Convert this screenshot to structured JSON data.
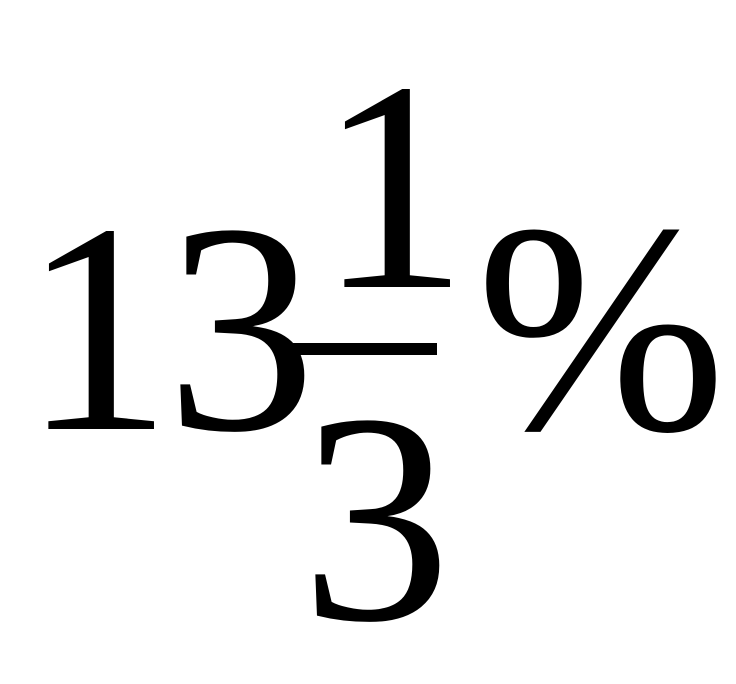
{
  "expression": {
    "whole": "13",
    "numerator": "1",
    "denominator": "3",
    "percent_sign": "%",
    "color": "#000000"
  }
}
